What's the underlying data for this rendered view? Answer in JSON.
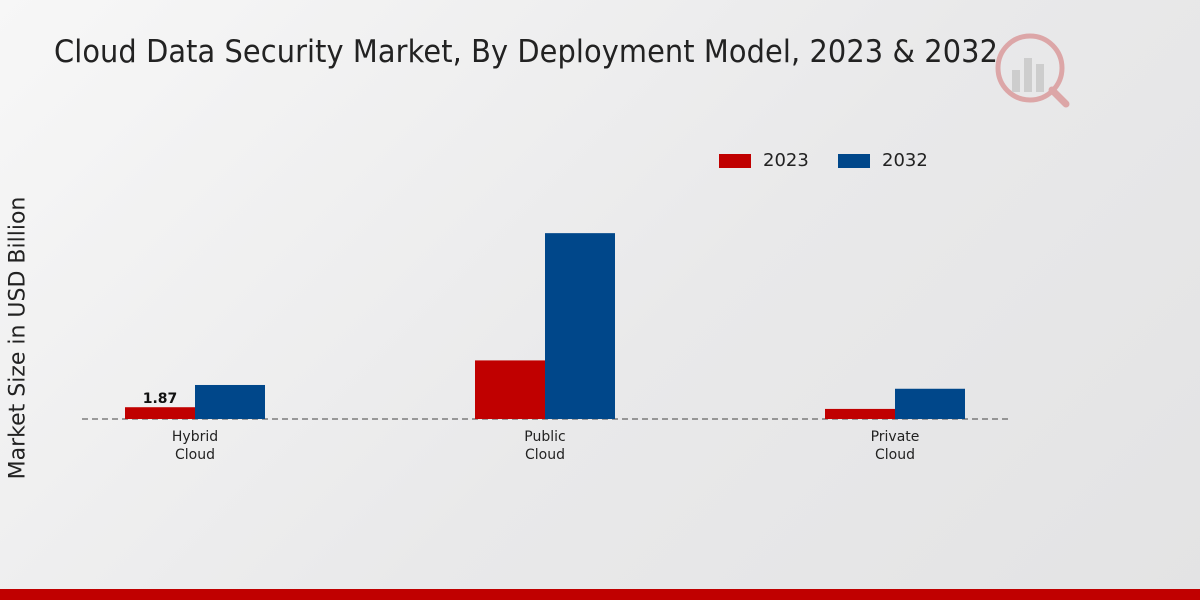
{
  "title": "Cloud Data Security Market, By Deployment Model, 2023 & 2032",
  "colors": {
    "2023": "#c00000",
    "2032": "#00478a",
    "accent_bar": "#c00000"
  },
  "chart_data": {
    "type": "bar",
    "title": "Cloud Data Security Market, By Deployment Model, 2023 & 2032",
    "ylabel": "Market Size in USD Billion",
    "xlabel": "",
    "categories": [
      "Hybrid\nCloud",
      "Public\nCloud",
      "Private\nCloud"
    ],
    "series": [
      {
        "name": "2023",
        "color": "#c00000",
        "values": [
          1.87,
          9.3,
          1.6
        ]
      },
      {
        "name": "2032",
        "color": "#00478a",
        "values": [
          5.4,
          29.5,
          4.8
        ]
      }
    ],
    "data_labels": [
      {
        "series": 0,
        "index": 0,
        "text": "1.87"
      }
    ],
    "ylim": [
      0,
      50
    ],
    "grid": false,
    "legend_position": "top-right"
  }
}
